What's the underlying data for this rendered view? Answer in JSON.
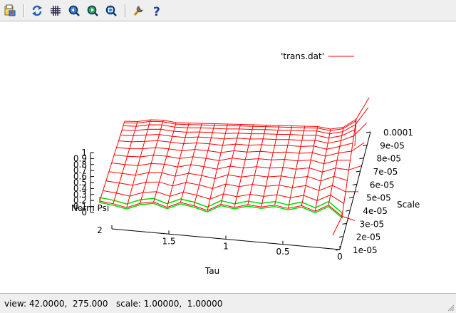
{
  "toolbar": {
    "buttons": [
      {
        "name": "export-icon"
      },
      {
        "name": "replot-icon"
      },
      {
        "name": "grid-icon"
      },
      {
        "name": "zoom-previous-icon"
      },
      {
        "name": "zoom-next-icon"
      },
      {
        "name": "unzoom-icon"
      },
      {
        "name": "preferences-icon"
      },
      {
        "name": "help-icon"
      }
    ]
  },
  "legend": {
    "label": "'trans.dat'",
    "color": "#ff0000"
  },
  "status": {
    "text": "view: 42.0000,  275.000   scale: 1.00000,  1.00000"
  },
  "chart_data": {
    "type": "surface",
    "view": [
      42.0,
      275.0
    ],
    "scale": [
      1.0,
      1.0
    ],
    "xlabel": "Tau",
    "ylabel": "Scale",
    "zlabel": "Norm Psi",
    "x_ticks": [
      "2",
      "1.5",
      "1",
      "0.5",
      "0"
    ],
    "y_ticks": [
      "1e-05",
      "2e-05",
      "3e-05",
      "4e-05",
      "5e-05",
      "6e-05",
      "7e-05",
      "8e-05",
      "9e-05",
      "0.0001"
    ],
    "z_ticks": [
      "0",
      "0.1",
      "0.2",
      "0.3",
      "0.4",
      "0.5",
      "0.6",
      "0.7",
      "0.8",
      "0.9",
      "1"
    ],
    "xlim": [
      0,
      2
    ],
    "ylim": [
      1e-05,
      0.0001
    ],
    "zlim": [
      0,
      1
    ],
    "surface_color": "#ff0000",
    "underside_color": "#00dd00",
    "top_edge_heights": [
      0.55,
      0.55,
      0.6,
      0.6,
      0.55,
      0.55,
      0.55,
      0.55,
      0.55,
      0.55,
      0.55,
      0.55,
      0.55,
      0.55,
      0.55,
      0.55,
      0.5,
      0.55,
      0.75
    ],
    "bottom_edge_dips": [
      0,
      0.05,
      0.12,
      0.03,
      0,
      0.1,
      0,
      0.06,
      0.15,
      0.02,
      0.08,
      0.02,
      0.06,
      0.02,
      0.08,
      0.02,
      0.13,
      0,
      0.22
    ]
  }
}
